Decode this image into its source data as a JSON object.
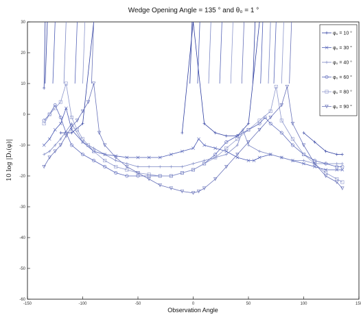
{
  "chart_data": {
    "type": "line",
    "title": "Wedge Opening Angle = 135 ° and θ₀ = 1 °",
    "xlabel": "Observation Angle",
    "ylabel": "10 log |D₁(φ)|",
    "xlim": [
      -150,
      150
    ],
    "ylim": [
      -60,
      30
    ],
    "xticks": [
      -150,
      -100,
      -50,
      0,
      50,
      100,
      150
    ],
    "yticks": [
      -60,
      -50,
      -40,
      -30,
      -20,
      -10,
      0,
      10,
      20,
      30
    ],
    "grid": false,
    "legend_position": "top-right",
    "colors": {
      "axis": "#000000",
      "series": [
        "#2a3a9e",
        "#4a5ab4",
        "#7a86c4",
        "#5664b8",
        "#8c96cc",
        "#6670b8"
      ]
    },
    "series": [
      {
        "name": "φ₀ = 10 °",
        "marker": "plus",
        "x": [
          -135,
          -134,
          -130,
          -120,
          -110,
          -100,
          -90,
          -80,
          -70,
          -60,
          -50,
          -40,
          -30,
          -20,
          -10,
          0,
          0,
          10,
          20,
          30,
          40,
          50,
          60,
          70,
          80,
          90,
          100,
          110,
          120,
          130,
          135
        ],
        "y": [
          8.5,
          30,
          null,
          -6,
          -6,
          -3,
          30,
          null,
          null,
          null,
          null,
          null,
          null,
          null,
          -6,
          30,
          30,
          -3,
          -6,
          -7,
          -7,
          -3,
          30,
          null,
          null,
          null,
          -6,
          -9,
          -12,
          -13,
          -13
        ]
      },
      {
        "name": "φ₀ = 30 °",
        "marker": "x",
        "x": [
          -135,
          -130,
          -125,
          -120,
          -115,
          -110,
          -100,
          -90,
          -80,
          -70,
          -60,
          -50,
          -40,
          -30,
          -20,
          -10,
          0,
          5,
          10,
          20,
          30,
          40,
          50,
          55,
          60,
          70,
          80,
          90,
          100,
          110,
          120,
          130,
          135
        ],
        "y": [
          -10,
          -8,
          -5,
          -3,
          2,
          -5,
          -9,
          -12,
          -13,
          -13.5,
          -14,
          -14,
          -14,
          -14,
          -13,
          -12,
          -11,
          -8,
          -10,
          -11,
          -12,
          -14,
          -15,
          -15,
          -14,
          -13,
          -14,
          -15,
          -16,
          -17,
          -18,
          -18,
          -18
        ]
      },
      {
        "name": "φ₀ = 40 °",
        "marker": "plus",
        "x": [
          -135,
          -130,
          -125,
          -120,
          -110,
          -100,
          -90,
          -80,
          -70,
          -60,
          -50,
          -40,
          -30,
          -20,
          -10,
          0,
          10,
          20,
          30,
          40,
          45,
          50,
          60,
          70,
          80,
          90,
          100,
          110,
          120,
          130,
          135
        ],
        "y": [
          -13,
          -12,
          -10,
          -8,
          -3,
          -9,
          -11,
          -13,
          -15,
          -16,
          -17,
          -17,
          -17,
          -17,
          -17,
          -16,
          -15,
          -14,
          -13,
          -10,
          -5,
          -10,
          -12,
          -13,
          -14,
          -15,
          -15,
          -16,
          -16,
          -16,
          -16
        ]
      },
      {
        "name": "φ₀ = 60 °",
        "marker": "circle",
        "x": [
          -135,
          -130,
          -125,
          -120,
          -115,
          -110,
          -100,
          -90,
          -80,
          -70,
          -60,
          -50,
          -40,
          -30,
          -20,
          -10,
          0,
          10,
          20,
          30,
          40,
          50,
          60,
          65,
          70,
          80,
          90,
          100,
          110,
          120,
          130,
          135
        ],
        "y": [
          -2,
          0,
          3,
          -1,
          -6,
          -10,
          -13,
          -15,
          -17,
          -19,
          -20,
          -20,
          -20,
          -20,
          -20,
          -19,
          -18,
          -16,
          -13,
          -9,
          -7,
          -5,
          -3,
          -1,
          -3,
          -6,
          -10,
          -13,
          -15,
          -16,
          -17,
          -17
        ]
      },
      {
        "name": "φ₀ = 80 °",
        "marker": "square",
        "x": [
          -135,
          -130,
          -125,
          -120,
          -115,
          -110,
          -105,
          -100,
          -95,
          -90,
          -80,
          -70,
          -60,
          -50,
          -40,
          -30,
          -20,
          -10,
          0,
          10,
          20,
          30,
          40,
          50,
          60,
          70,
          75,
          80,
          90,
          100,
          110,
          120,
          130,
          135
        ],
        "y": [
          -3,
          0,
          2,
          4,
          10,
          -1,
          -5,
          -8,
          -10,
          -12,
          -15,
          -17,
          -18,
          -19,
          -19.5,
          -20,
          -20,
          -19,
          -18,
          -16,
          -14,
          -11,
          -8,
          -5,
          -2,
          1,
          9,
          -2,
          -8,
          -13,
          -16,
          -19,
          -21,
          -22
        ]
      },
      {
        "name": "φ₀ = 90 °",
        "marker": "triangle-down",
        "x": [
          -135,
          -130,
          -125,
          -120,
          -115,
          -110,
          -105,
          -100,
          -95,
          -90,
          -85,
          -80,
          -70,
          -60,
          -50,
          -40,
          -30,
          -20,
          -10,
          0,
          5,
          10,
          20,
          30,
          40,
          50,
          60,
          70,
          80,
          85,
          90,
          100,
          110,
          120,
          130,
          135
        ],
        "y": [
          -17,
          -14,
          -12,
          -10,
          -7,
          -4,
          -2,
          1,
          4,
          10,
          -6,
          -10,
          -14,
          -17,
          -19,
          -21,
          -23,
          -24,
          -25,
          -25.5,
          -25,
          -24,
          -21,
          -17,
          -13,
          -9,
          -5,
          -1,
          3,
          9,
          -3,
          -10,
          -16,
          -20,
          -22,
          -24
        ]
      }
    ],
    "upper_branches": [
      {
        "series": 0,
        "x": [
          -134,
          -132
        ],
        "y": [
          10,
          30
        ]
      },
      {
        "series": 1,
        "x": [
          -127,
          -125
        ],
        "y": [
          10,
          30
        ]
      },
      {
        "series": 2,
        "x": [
          -117,
          -115
        ],
        "y": [
          10,
          30
        ]
      },
      {
        "series": 3,
        "x": [
          -107,
          -105
        ],
        "y": [
          10,
          30
        ]
      },
      {
        "series": 4,
        "x": [
          -100,
          -98
        ],
        "y": [
          10,
          30
        ]
      },
      {
        "series": 5,
        "x": [
          -92,
          -90
        ],
        "y": [
          10,
          30
        ]
      },
      {
        "series": 0,
        "x": [
          -3,
          -1
        ],
        "y": [
          10,
          30
        ]
      },
      {
        "series": 1,
        "x": [
          4,
          6
        ],
        "y": [
          10,
          30
        ]
      },
      {
        "series": 2,
        "x": [
          14,
          16
        ],
        "y": [
          10,
          30
        ]
      },
      {
        "series": 3,
        "x": [
          24,
          26
        ],
        "y": [
          10,
          30
        ]
      },
      {
        "series": 4,
        "x": [
          34,
          36
        ],
        "y": [
          10,
          30
        ]
      },
      {
        "series": 5,
        "x": [
          44,
          46
        ],
        "y": [
          10,
          30
        ]
      },
      {
        "series": 0,
        "x": [
          54,
          56
        ],
        "y": [
          10,
          30
        ]
      },
      {
        "series": 1,
        "x": [
          61,
          63
        ],
        "y": [
          10,
          30
        ]
      },
      {
        "series": 2,
        "x": [
          68,
          70
        ],
        "y": [
          10,
          30
        ]
      },
      {
        "series": 3,
        "x": [
          73,
          75
        ],
        "y": [
          10,
          30
        ]
      },
      {
        "series": 4,
        "x": [
          80,
          82
        ],
        "y": [
          10,
          30
        ]
      },
      {
        "series": 5,
        "x": [
          87,
          89
        ],
        "y": [
          10,
          30
        ]
      }
    ]
  }
}
